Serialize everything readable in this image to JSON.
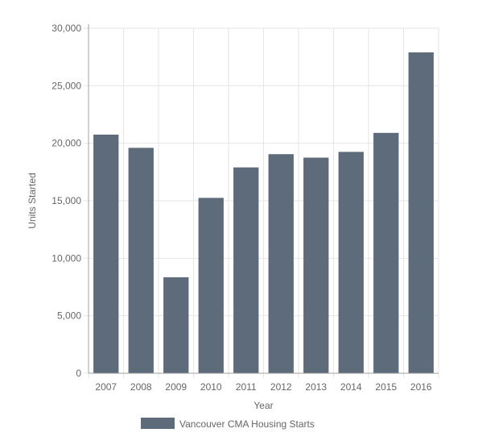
{
  "chart_data": {
    "type": "bar",
    "categories": [
      "2007",
      "2008",
      "2009",
      "2010",
      "2011",
      "2012",
      "2013",
      "2014",
      "2015",
      "2016"
    ],
    "series": [
      {
        "name": "Vancouver CMA Housing Starts",
        "values": [
          20750,
          19600,
          8350,
          15250,
          17900,
          19050,
          18750,
          19250,
          20900,
          27900
        ]
      }
    ],
    "xlabel": "Year",
    "ylabel": "Units Started",
    "ylim": [
      0,
      30000
    ],
    "yticks": [
      "0",
      "5,000",
      "10,000",
      "15,000",
      "20,000",
      "25,000",
      "30,000"
    ],
    "grid": true,
    "legend_position": "bottom-left",
    "colors": {
      "bar": "#5d6b7a",
      "grid": "#e6e6e6",
      "axis": "#a0a0a0",
      "text": "#666666"
    }
  }
}
